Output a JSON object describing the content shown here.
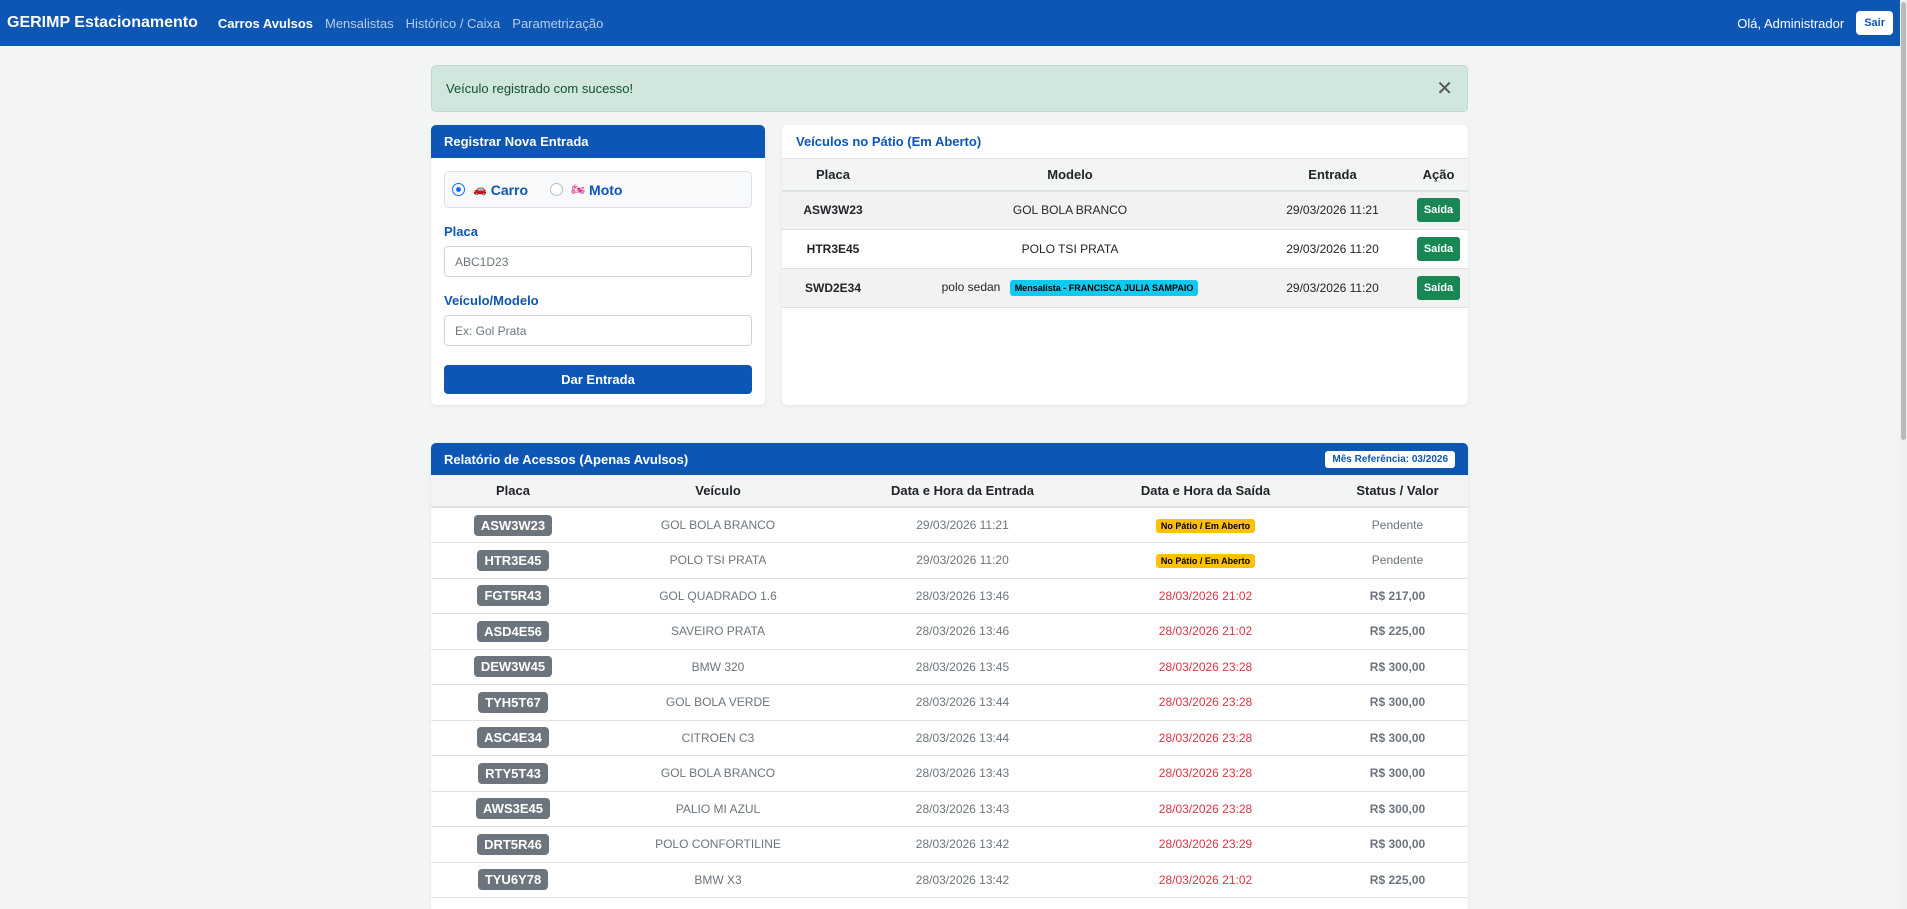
{
  "navbar": {
    "brand": "GERIMP Estacionamento",
    "links": [
      "Carros Avulsos",
      "Mensalistas",
      "Histórico / Caixa",
      "Parametrização"
    ],
    "greeting": "Olá, Administrador",
    "logout": "Sair"
  },
  "alert": {
    "message": "Veículo registrado com sucesso!",
    "close": "✕"
  },
  "entry": {
    "title": "Registrar Nova Entrada",
    "type_car": "Carro",
    "type_moto": "Moto",
    "car_icon": "🚗",
    "moto_icon": "🏍",
    "placa_label": "Placa",
    "placa_placeholder": "ABC1D23",
    "modelo_label": "Veículo/Modelo",
    "modelo_placeholder": "Ex: Gol Prata",
    "submit": "Dar Entrada"
  },
  "patio": {
    "title": "Veículos no Pátio (Em Aberto)",
    "headers": [
      "Placa",
      "Modelo",
      "Entrada",
      "Ação"
    ],
    "rows": [
      {
        "placa": "ASW3W23",
        "modelo": "GOL BOLA BRANCO",
        "badge": "",
        "entrada": "29/03/2026 11:21",
        "acao": "Saída"
      },
      {
        "placa": "HTR3E45",
        "modelo": "POLO TSI PRATA",
        "badge": "",
        "entrada": "29/03/2026 11:20",
        "acao": "Saída"
      },
      {
        "placa": "SWD2E34",
        "modelo": "polo sedan",
        "badge": "Mensalista - FRANCISCA JULIA SAMPAIO",
        "entrada": "29/03/2026 11:20",
        "acao": "Saída"
      }
    ]
  },
  "report": {
    "title": "Relatório de Acessos (Apenas Avulsos)",
    "month": "Mês Referência: 03/2026",
    "headers": [
      "Placa",
      "Veículo",
      "Data e Hora da Entrada",
      "Data e Hora da Saída",
      "Status / Valor"
    ],
    "rows": [
      {
        "placa": "ASW3W23",
        "veiculo": "GOL BOLA BRANCO",
        "entrada": "29/03/2026 11:21",
        "saida": "No Pátio / Em Aberto",
        "status": "Pendente",
        "open": true
      },
      {
        "placa": "HTR3E45",
        "veiculo": "POLO TSI PRATA",
        "entrada": "29/03/2026 11:20",
        "saida": "No Pátio / Em Aberto",
        "status": "Pendente",
        "open": true
      },
      {
        "placa": "FGT5R43",
        "veiculo": "GOL QUADRADO 1.6",
        "entrada": "28/03/2026 13:46",
        "saida": "28/03/2026 21:02",
        "status": "R$ 217,00",
        "open": false
      },
      {
        "placa": "ASD4E56",
        "veiculo": "SAVEIRO PRATA",
        "entrada": "28/03/2026 13:46",
        "saida": "28/03/2026 21:02",
        "status": "R$ 225,00",
        "open": false
      },
      {
        "placa": "DEW3W45",
        "veiculo": "BMW 320",
        "entrada": "28/03/2026 13:45",
        "saida": "28/03/2026 23:28",
        "status": "R$ 300,00",
        "open": false
      },
      {
        "placa": "TYH5T67",
        "veiculo": "GOL BOLA VERDE",
        "entrada": "28/03/2026 13:44",
        "saida": "28/03/2026 23:28",
        "status": "R$ 300,00",
        "open": false
      },
      {
        "placa": "ASC4E34",
        "veiculo": "CITROEN C3",
        "entrada": "28/03/2026 13:44",
        "saida": "28/03/2026 23:28",
        "status": "R$ 300,00",
        "open": false
      },
      {
        "placa": "RTY5T43",
        "veiculo": "GOL BOLA BRANCO",
        "entrada": "28/03/2026 13:43",
        "saida": "28/03/2026 23:28",
        "status": "R$ 300,00",
        "open": false
      },
      {
        "placa": "AWS3E45",
        "veiculo": "PALIO MI AZUL",
        "entrada": "28/03/2026 13:43",
        "saida": "28/03/2026 23:28",
        "status": "R$ 300,00",
        "open": false
      },
      {
        "placa": "DRT5R46",
        "veiculo": "POLO CONFORTILINE",
        "entrada": "28/03/2026 13:42",
        "saida": "28/03/2026 23:29",
        "status": "R$ 300,00",
        "open": false
      },
      {
        "placa": "TYU6Y78",
        "veiculo": "BMW X3",
        "entrada": "28/03/2026 13:42",
        "saida": "28/03/2026 21:02",
        "status": "R$ 225,00",
        "open": false
      }
    ]
  },
  "colors": {
    "primary": "#0d56b3",
    "success": "#198754",
    "danger": "#dc3545",
    "warning": "#ffc107",
    "info": "#0dcaf0"
  }
}
